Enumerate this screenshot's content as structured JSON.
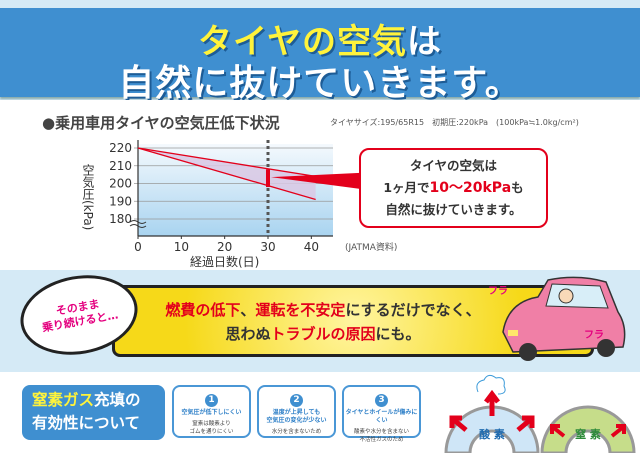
{
  "header": {
    "line1_highlight": "タイヤの空気",
    "line1_rest": "は",
    "line2": "自然に抜けていきます。",
    "highlight_color": "#fff33b",
    "bg_color": "#3f8fd0"
  },
  "chart_section": {
    "title": "●乗用車用タイヤの空気圧低下状況",
    "note": "タイヤサイズ:195/65R15　初期圧:220kPa　(100kPa≒1.0kg/cm²)",
    "source": "(JATMA資料)"
  },
  "callout": {
    "line1": "タイヤの空気は",
    "line2_pre": "1ヶ月で",
    "line2_highlight": "10〜20kPa",
    "line2_post": "も",
    "line3": "自然に抜けていきます。"
  },
  "chart_data": {
    "type": "line",
    "title": "乗用車用タイヤの空気圧低下状況",
    "xlabel": "経過日数(日)",
    "ylabel": "空気圧(kPa)",
    "xlim": [
      0,
      45
    ],
    "ylim": [
      170,
      222
    ],
    "xticks": [
      0,
      10,
      20,
      30,
      40
    ],
    "yticks": [
      180,
      190,
      200,
      210,
      220
    ],
    "y_axis_break": true,
    "grid": "horizontal",
    "series": [
      {
        "x": [
          0,
          41
        ],
        "y": [
          220,
          204
        ]
      },
      {
        "x": [
          0,
          41
        ],
        "y": [
          220,
          191
        ]
      }
    ],
    "marker_day": 30,
    "range_at_marker": [
      198,
      208
    ],
    "line_color": "#e3001b",
    "band_color": "#d9c8e4"
  },
  "warning": {
    "bubble": [
      "そのまま",
      "乗り続けると…"
    ],
    "line1": [
      {
        "t": "燃費の低下",
        "red": true
      },
      {
        "t": "、",
        "red": false
      },
      {
        "t": "運転を不安定",
        "red": true
      },
      {
        "t": "にするだけでなく、",
        "red": false
      }
    ],
    "line2": [
      {
        "t": "思わぬ",
        "red": false
      },
      {
        "t": "トラブルの原因",
        "red": true
      },
      {
        "t": "にも。",
        "red": false
      }
    ],
    "sfx": "フラ"
  },
  "nitrogen": {
    "title_highlight": "窒素ガス",
    "title_rest": "充填の",
    "title_line2": "有効性について",
    "cards": [
      {
        "num": "1",
        "title": "空気圧が低下しにくい",
        "sub": "窒素は酸素より\nゴムを通りにくい"
      },
      {
        "num": "2",
        "title": "温度が上昇しても\n空気圧の変化が少ない",
        "sub": "水分を含まないため"
      },
      {
        "num": "3",
        "title": "タイヤとホイールが傷みにくい",
        "sub": "酸素や水分を含まない\n不活性ガスのため"
      }
    ],
    "diagram_oxygen": "酸 素",
    "diagram_nitrogen": "窒 素"
  }
}
